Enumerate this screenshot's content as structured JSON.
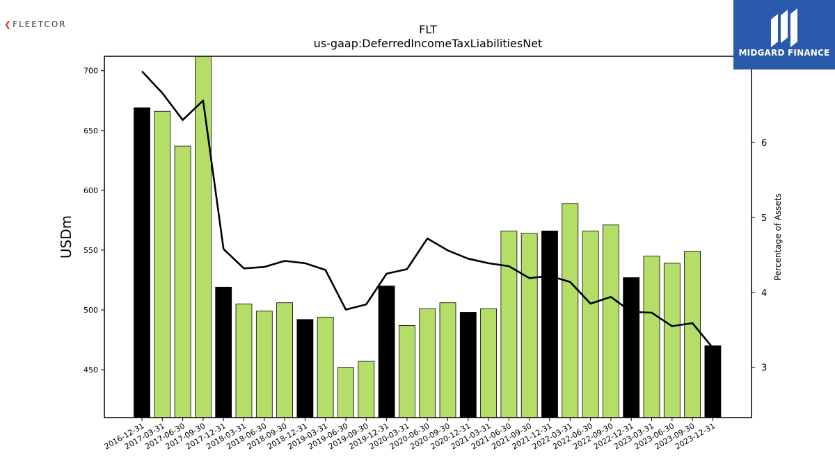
{
  "header": {
    "company_logo_text": "FLEETCOR",
    "badge_text": "MIDGARD FINANCE",
    "colors": {
      "badge_bg": "#2a5aab"
    }
  },
  "chart_data": {
    "type": "bar",
    "title": "FLT",
    "subtitle": "us-gaap:DeferredIncomeTaxLiabilitiesNet",
    "ylabel": "USDm",
    "y2label": "Percentage of Assets",
    "ylim": [
      410,
      712
    ],
    "y2lim": [
      2.33,
      7.15
    ],
    "yticks": [
      450,
      500,
      550,
      600,
      650,
      700
    ],
    "y2ticks": [
      3,
      4,
      5,
      6
    ],
    "categories": [
      "2016-12-31",
      "2017-03-31",
      "2017-06-30",
      "2017-09-30",
      "2017-12-31",
      "2018-03-31",
      "2018-06-30",
      "2018-09-30",
      "2018-12-31",
      "2019-03-31",
      "2019-06-30",
      "2019-09-30",
      "2019-12-31",
      "2020-03-31",
      "2020-06-30",
      "2020-09-30",
      "2020-12-31",
      "2021-03-31",
      "2021-06-30",
      "2021-09-30",
      "2021-12-31",
      "2022-03-31",
      "2022-06-30",
      "2022-09-30",
      "2022-12-31",
      "2023-03-31",
      "2023-06-30",
      "2023-09-30",
      "2023-12-31"
    ],
    "series": [
      {
        "kind": "bar",
        "values": [
          669,
          666,
          637,
          712,
          519,
          505,
          499,
          506,
          492,
          494,
          452,
          457,
          520,
          487,
          501,
          506,
          498,
          501,
          566,
          564,
          566,
          589,
          566,
          571,
          527,
          545,
          539,
          549,
          470
        ],
        "colors": {
          "year_end": "#000000",
          "quarter": "#b5de68"
        }
      },
      {
        "kind": "line",
        "axis": "right",
        "color": "#000000",
        "values": [
          6.95,
          6.66,
          6.3,
          6.56,
          4.58,
          4.32,
          4.34,
          4.42,
          4.39,
          4.3,
          3.77,
          3.84,
          4.25,
          4.31,
          4.72,
          4.56,
          4.45,
          4.39,
          4.35,
          4.19,
          4.22,
          4.14,
          3.85,
          3.94,
          3.74,
          3.73,
          3.55,
          3.59,
          3.26
        ]
      }
    ],
    "grid": false,
    "legend": "none"
  }
}
